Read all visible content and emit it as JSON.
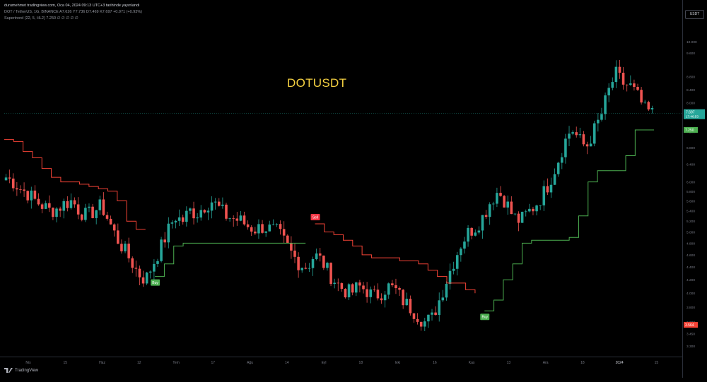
{
  "header": {
    "line1": "durumehmet tradingview.com, Oca 04, 2024 09:13 UTC+3 tarihinde yayınlandı",
    "line2": "DOT / TetherUS, 1G, BINANCE  A7.626  Y7.736  D7.469  K7.697  +0.071 (+0.93%)",
    "line3": "Supertrend (22, 5, HL2)  7.250  ∅ ∅ ∅ ∅ ∅"
  },
  "currency_badge": "USDT",
  "title": "DOTUSDT",
  "logo_text": "TradingView",
  "colors": {
    "up": "#26a69a",
    "down": "#ef5350",
    "st_up": "#4caf50",
    "st_down": "#f44336",
    "fill_up": "#0c1f10",
    "fill_down": "#2a0b0b",
    "buy": "#4caf50",
    "sell": "#f23645"
  },
  "chart_data": {
    "type": "candlestick",
    "title": "DOTUSDT",
    "y_scale": "log",
    "ylim": [
      3.3,
      10.5
    ],
    "ticks_y": [
      "10.000",
      "9.600",
      "8.800",
      "8.400",
      "8.000",
      "7.600",
      "7.200",
      "6.800",
      "6.400",
      "6.000",
      "5.800",
      "5.600",
      "5.400",
      "5.200",
      "5.000",
      "4.800",
      "4.600",
      "4.400",
      "4.200",
      "4.000",
      "3.800",
      "3.600",
      "3.450",
      "3.300"
    ],
    "ticks_x": [
      "Nis",
      "15",
      "Haz",
      "12",
      "Tem",
      "17",
      "Ağu",
      "14",
      "Eyl",
      "18",
      "Eki",
      "16",
      "Kas",
      "13",
      "Ara",
      "18",
      "2024",
      "15"
    ],
    "last_price": "7.697",
    "countdown": "17:46:53",
    "supertrend_value": "7.250",
    "low_marker": "3.564",
    "signals": [
      {
        "label": "Buy",
        "date_index": 2
      },
      {
        "label": "Sell",
        "date_index": 4
      },
      {
        "label": "Buy",
        "date_index": 7
      }
    ],
    "series": [
      {
        "name": "Price path",
        "values": [
          6.1,
          6.0,
          5.85,
          5.75,
          5.6,
          5.5,
          5.4,
          5.45,
          5.55,
          5.6,
          5.4,
          5.3,
          5.4,
          5.5,
          5.2,
          4.9,
          4.7,
          4.5,
          4.3,
          4.2,
          4.45,
          4.7,
          5.0,
          5.3,
          5.2,
          5.4,
          5.35,
          5.5,
          5.6,
          5.45,
          5.3,
          5.25,
          5.2,
          5.1,
          5.05,
          5.1,
          5.05,
          5.0,
          4.8,
          4.6,
          4.45,
          4.4,
          4.6,
          4.5,
          4.3,
          4.15,
          4.05,
          4.0,
          4.1,
          4.05,
          3.95,
          4.0,
          4.1,
          4.05,
          3.9,
          3.8,
          3.7,
          3.6,
          3.65,
          3.9,
          4.2,
          4.5,
          4.8,
          5.0,
          5.1,
          5.3,
          5.6,
          5.8,
          5.6,
          5.3,
          5.2,
          5.35,
          5.5,
          5.7,
          6.0,
          6.4,
          6.9,
          7.3,
          7.0,
          6.8,
          7.2,
          7.6,
          8.3,
          8.9,
          8.6,
          8.5,
          8.2,
          7.8,
          7.7
        ]
      }
    ],
    "supertrend": [
      {
        "direction": "down",
        "values": [
          7.0,
          6.95,
          6.7,
          6.55,
          6.3,
          6.1,
          6.0,
          6.0,
          5.95,
          5.9,
          5.85,
          5.8,
          5.6,
          5.2,
          5.05,
          5.05
        ]
      },
      {
        "direction": "up",
        "values": [
          4.25,
          4.45,
          4.75,
          4.8,
          4.8,
          4.8,
          4.8,
          4.8,
          4.8,
          4.8,
          4.8,
          4.8,
          4.8,
          4.8,
          4.8,
          4.8,
          4.8
        ]
      },
      {
        "direction": "down",
        "values": [
          5.15,
          5.0,
          4.95,
          4.85,
          4.75,
          4.6,
          4.55,
          4.55,
          4.55,
          4.5,
          4.5,
          4.45,
          4.35,
          4.25,
          4.15,
          4.15,
          4.05,
          4.0
        ]
      },
      {
        "direction": "up",
        "values": [
          3.75,
          3.9,
          4.2,
          4.45,
          4.8,
          4.85,
          4.85,
          4.85,
          4.85,
          4.9,
          5.3,
          6.0,
          6.25,
          6.25,
          6.25,
          6.6,
          7.25,
          7.25,
          7.25
        ]
      }
    ]
  }
}
